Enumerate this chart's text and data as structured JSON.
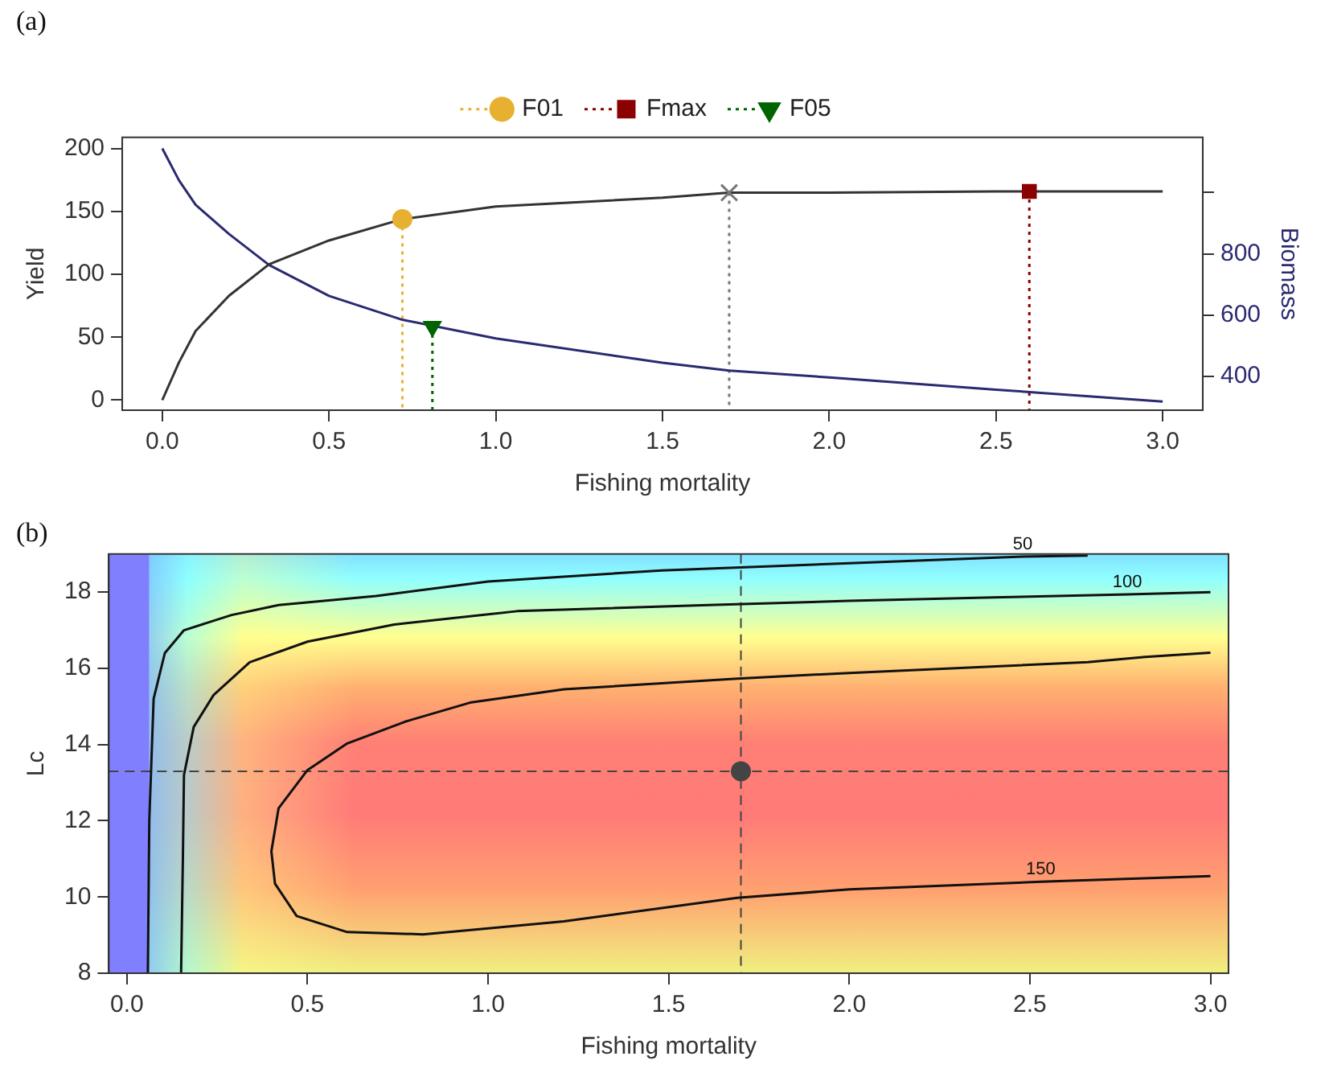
{
  "chart_data": [
    {
      "type": "line",
      "title": "(a)",
      "xlabel": "Fishing mortality",
      "ylabel": "Yield",
      "y2label": "Biomass",
      "grid": false,
      "legend": "top",
      "xlim": [
        -0.12,
        3.12
      ],
      "xticks": [
        {
          "value": 0,
          "label": "0.0"
        },
        {
          "value": 0.5,
          "label": "0.5"
        },
        {
          "value": 1,
          "label": "1.0"
        },
        {
          "value": 1.5,
          "label": "1.5"
        },
        {
          "value": 2,
          "label": "2.0"
        },
        {
          "value": 2.5,
          "label": "2.5"
        },
        {
          "value": 3,
          "label": "3.0"
        }
      ],
      "ylim": [
        -8,
        209
      ],
      "yticks": [
        0,
        50,
        100,
        150,
        200
      ],
      "y2lim": [
        290,
        1180
      ],
      "y2ticks": [
        400,
        600,
        800,
        {
          "value": 1000,
          "label": null
        }
      ],
      "x": [
        0,
        0.05,
        0.1,
        0.2,
        0.32,
        0.5,
        0.72,
        1,
        1.5,
        1.7,
        2,
        2.5,
        3
      ],
      "series": [
        {
          "color": "#333333",
          "values": [
            0,
            30,
            55,
            83,
            108,
            127,
            144,
            154,
            161,
            165,
            165,
            166,
            166
          ]
        },
        {
          "color": "#2a2a70",
          "axis": "y2",
          "values": [
            1144,
            1040,
            960,
            865,
            764,
            663,
            585,
            524,
            445,
            419,
            397,
            357,
            318
          ]
        },
        {
          "type": "scatter",
          "name": "F01",
          "color": "#e8b030",
          "marker": "circle",
          "line_style": "dotted",
          "x": [
            0.72
          ],
          "values": [
            144
          ]
        },
        {
          "type": "line",
          "color": "#e8b030",
          "line_style": "dotted",
          "x": [
            0.72,
            0.72
          ],
          "values": [
            144,
            -8
          ]
        },
        {
          "type": "scatter",
          "name": "Fmax",
          "color": "#8b0000",
          "marker": "square",
          "line_style": "dotted",
          "x": [
            2.6
          ],
          "values": [
            166
          ]
        },
        {
          "type": "line",
          "color": "#8b0000",
          "line_style": "dotted",
          "x": [
            2.6,
            2.6
          ],
          "values": [
            166,
            -8
          ]
        },
        {
          "type": "scatter",
          "name": "F05",
          "color": "#006400",
          "marker": "triangle",
          "line_style": "dotted",
          "axis": "y2",
          "x": [
            0.81
          ],
          "values": [
            563
          ]
        },
        {
          "type": "line",
          "color": "#006400",
          "line_style": "dotted",
          "axis": "y2",
          "x": [
            0.81,
            0.81
          ],
          "values": [
            563,
            290
          ]
        },
        {
          "type": "scatter",
          "color": "#777777",
          "marker": "cross",
          "x": [
            1.7
          ],
          "values": [
            165
          ]
        },
        {
          "type": "line",
          "color": "#777777",
          "line_style": "dotted",
          "x": [
            1.7,
            1.7
          ],
          "values": [
            165,
            -8
          ]
        }
      ]
    },
    {
      "type": "line",
      "title": "(b)",
      "xlabel": "Fishing mortality",
      "ylabel": "Lc",
      "grid": false,
      "legend": false,
      "xlim": [
        -0.05,
        3.05
      ],
      "xticks": [
        {
          "value": 0,
          "label": "0.0"
        },
        {
          "value": 0.5,
          "label": "0.5"
        },
        {
          "value": 1,
          "label": "1.0"
        },
        {
          "value": 1.5,
          "label": "1.5"
        },
        {
          "value": 2,
          "label": "2.0"
        },
        {
          "value": 2.5,
          "label": "2.5"
        },
        {
          "value": 3,
          "label": "3.0"
        }
      ],
      "ylim": [
        8,
        19
      ],
      "yticks": [
        8,
        10,
        12,
        14,
        16,
        18
      ],
      "ref_lines": [
        {
          "axis": "x",
          "value": 1.7,
          "color": "#444444",
          "line_style": "dashed"
        },
        {
          "axis": "y",
          "value": 13.3,
          "color": "#444444",
          "line_style": "dashed"
        }
      ],
      "series": [
        {
          "name": "50",
          "color": "#111111",
          "x": [
            0.058,
            0.062,
            0.074,
            0.105,
            0.158,
            0.29,
            0.42,
            0.69,
            1.0,
            1.48,
            2.0,
            2.48,
            2.66
          ],
          "values": [
            8,
            12,
            15.2,
            16.4,
            17.0,
            17.4,
            17.66,
            17.9,
            18.28,
            18.57,
            18.76,
            18.93,
            18.96
          ]
        },
        {
          "name": "100",
          "color": "#111111",
          "x": [
            0.15,
            0.155,
            0.158,
            0.185,
            0.24,
            0.34,
            0.5,
            0.74,
            1.08,
            1.61,
            2.0,
            2.4,
            2.77,
            3.0
          ],
          "values": [
            8,
            11,
            13.2,
            14.46,
            15.3,
            16.16,
            16.7,
            17.15,
            17.5,
            17.66,
            17.77,
            17.86,
            17.94,
            18.0
          ]
        },
        {
          "name": "150",
          "color": "#111111",
          "x": [
            3.0,
            2.82,
            2.66,
            2.0,
            1.69,
            1.21,
            0.95,
            0.77,
            0.61,
            0.5,
            0.42,
            0.4,
            0.41,
            0.47,
            0.61,
            0.82,
            1.21,
            1.69,
            2.0,
            2.53,
            3.0
          ],
          "values": [
            16.41,
            16.3,
            16.16,
            15.88,
            15.73,
            15.45,
            15.1,
            14.6,
            14.03,
            13.33,
            12.33,
            11.2,
            10.35,
            9.5,
            9.08,
            9.02,
            9.36,
            9.98,
            10.2,
            10.4,
            10.55
          ]
        },
        {
          "type": "scatter",
          "color": "#444444",
          "marker": "circle",
          "x": [
            1.7
          ],
          "values": [
            13.3
          ]
        }
      ]
    }
  ]
}
